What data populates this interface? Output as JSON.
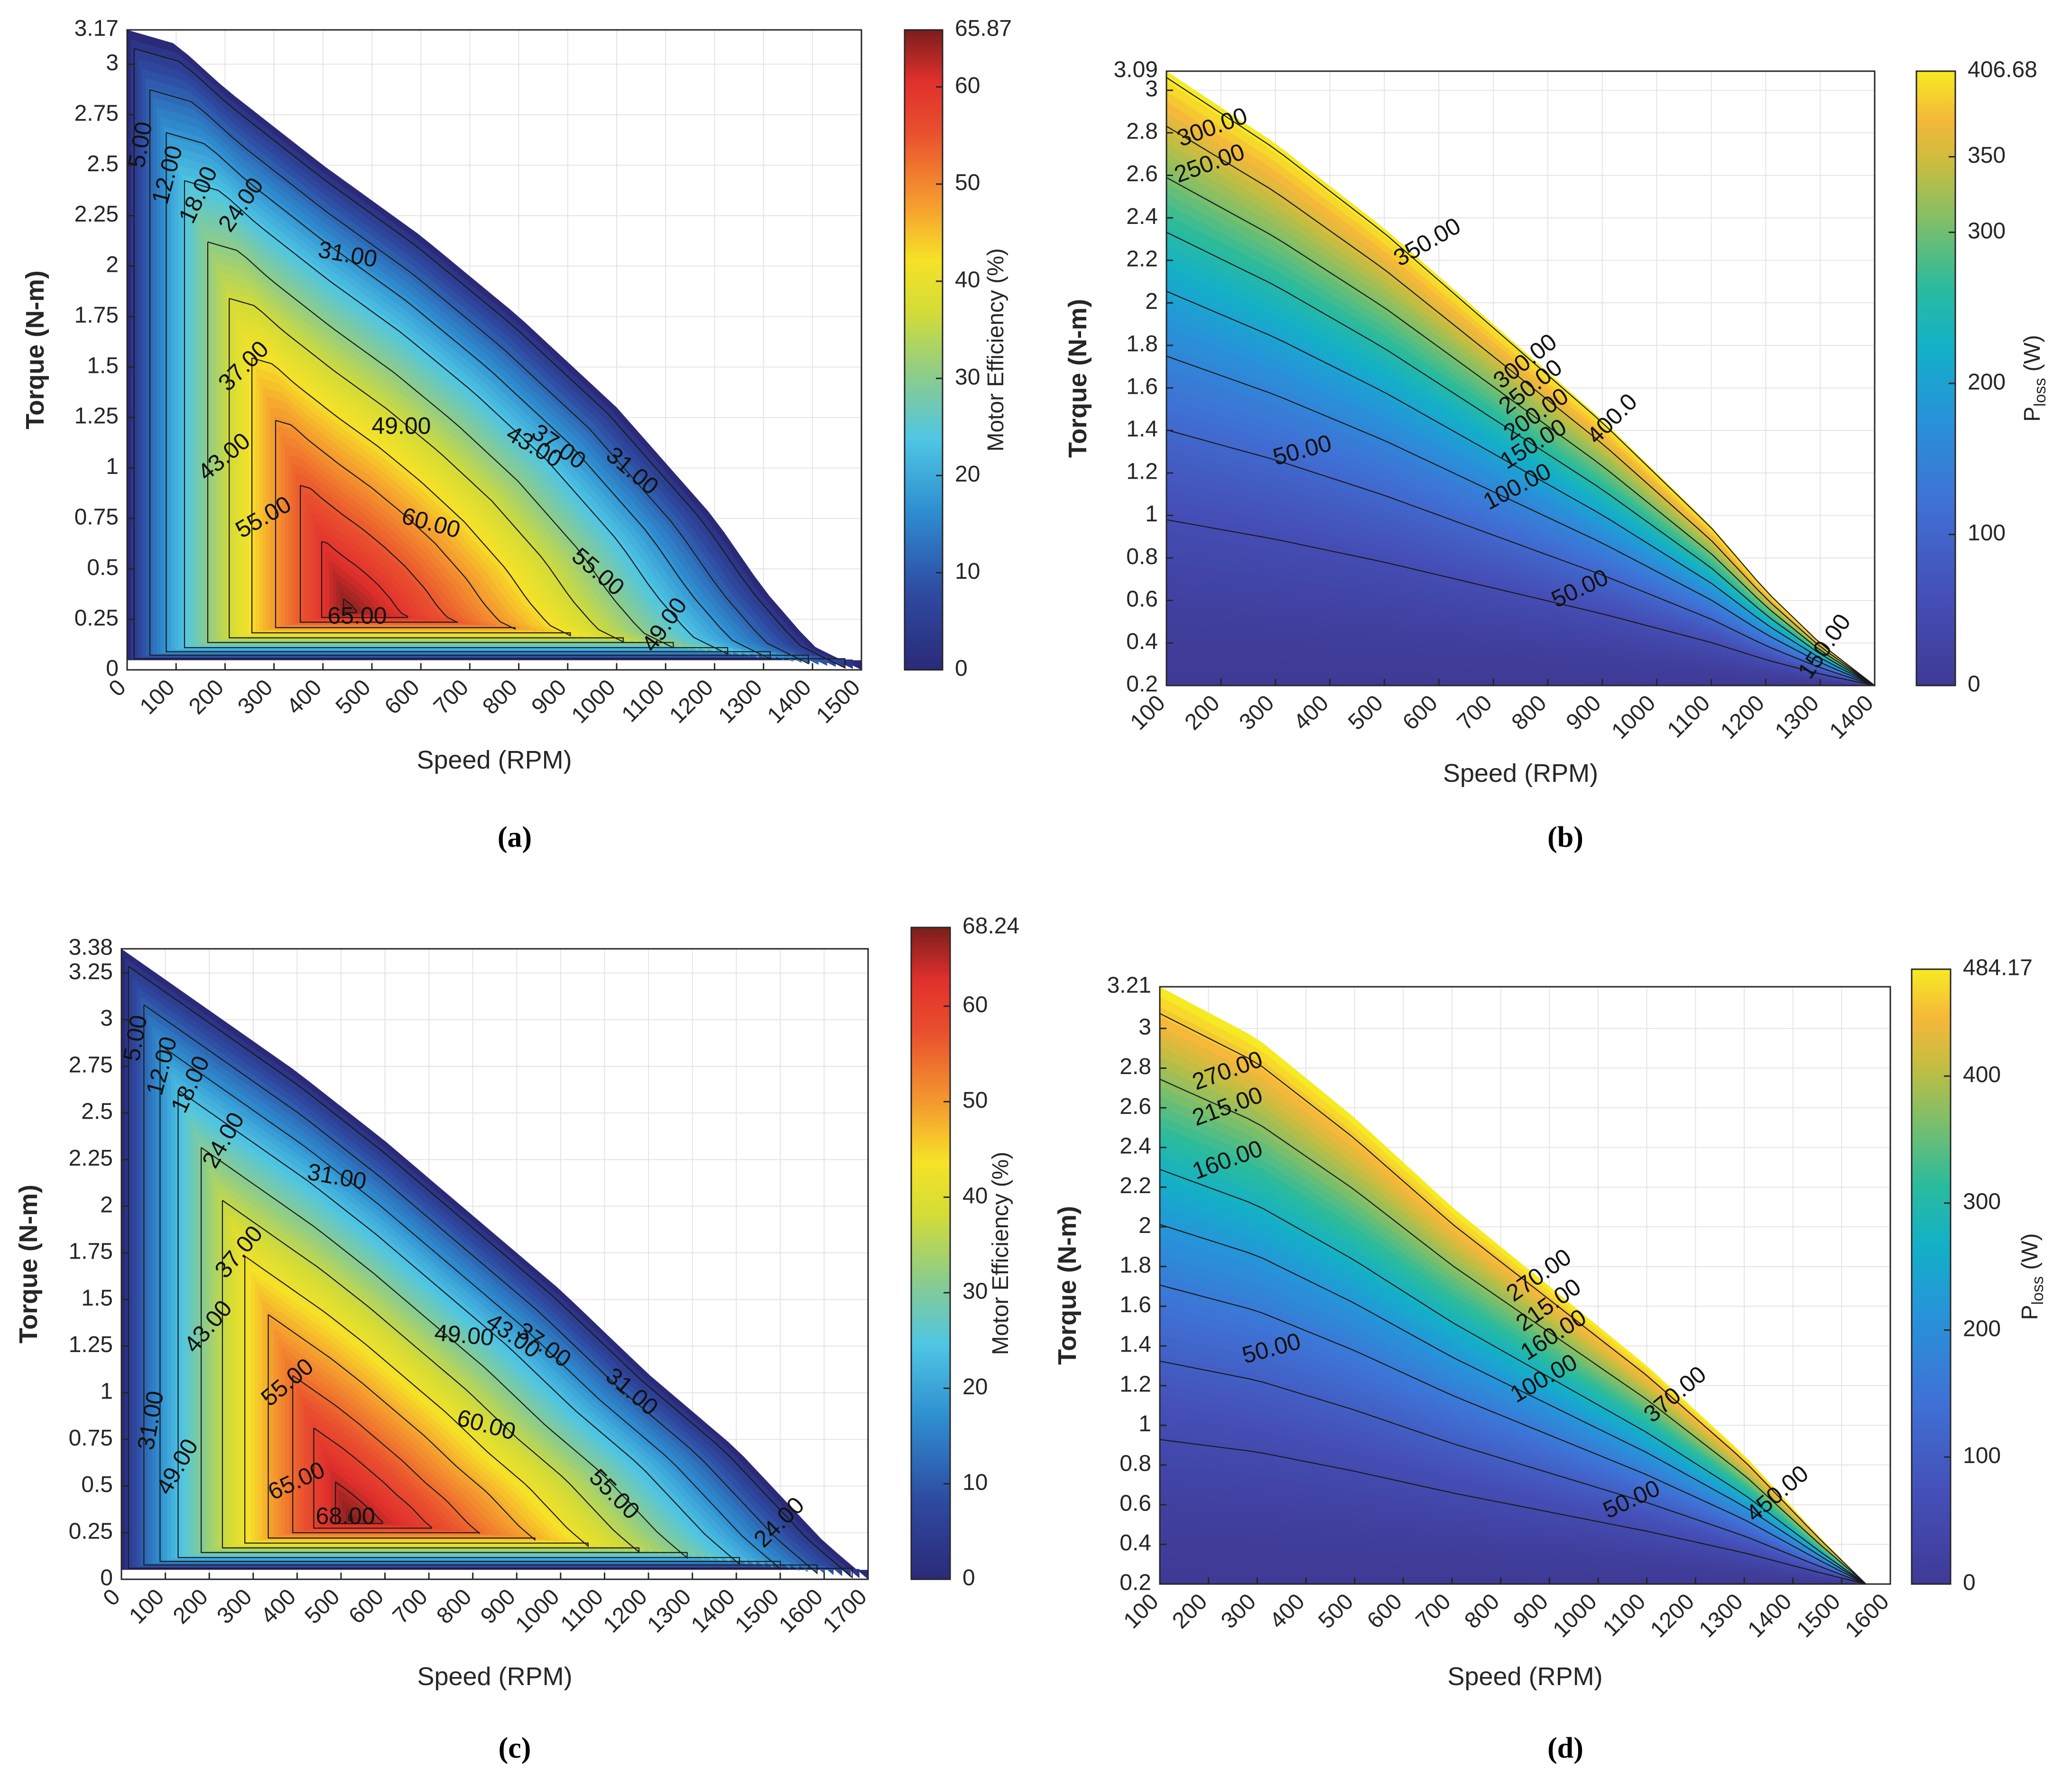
{
  "figure": {
    "panels": [
      {
        "id": "a",
        "caption": "(a)"
      },
      {
        "id": "b",
        "caption": "(b)"
      },
      {
        "id": "c",
        "caption": "(c)"
      },
      {
        "id": "d",
        "caption": "(d)"
      }
    ]
  },
  "chart_data": [
    {
      "panel": "a",
      "type": "contour",
      "title": "",
      "xlabel": "Speed (RPM)",
      "ylabel": "Torque (N-m)",
      "colorbar_label": "Motor Efficiency (%)",
      "xlim": [
        0,
        1500
      ],
      "ylim": [
        0,
        3.17
      ],
      "x_ticks": [
        "0",
        "100",
        "200",
        "300",
        "400",
        "500",
        "600",
        "700",
        "800",
        "900",
        "1000",
        "1100",
        "1200",
        "1300",
        "1400",
        "1500"
      ],
      "y_ticks": [
        "0",
        "0.25",
        "0.5",
        "0.75",
        "1",
        "1.25",
        "1.5",
        "1.75",
        "2",
        "2.25",
        "2.5",
        "2.75",
        "3",
        "3.17"
      ],
      "colorbar_range": [
        0,
        65.87
      ],
      "colorbar_ticks": [
        "0",
        "10",
        "20",
        "30",
        "40",
        "50",
        "60",
        "65.87"
      ],
      "colormap": "jet",
      "contour_levels": [
        5,
        12,
        18,
        24,
        31,
        37,
        43,
        49,
        55,
        60,
        65
      ],
      "boundary": [
        [
          0,
          3.17
        ],
        [
          100,
          3.1
        ],
        [
          200,
          2.88
        ],
        [
          400,
          2.5
        ],
        [
          600,
          2.15
        ],
        [
          800,
          1.75
        ],
        [
          1000,
          1.3
        ],
        [
          1200,
          0.75
        ],
        [
          1300,
          0.4
        ],
        [
          1400,
          0.12
        ],
        [
          1500,
          0
        ]
      ],
      "peak": {
        "x": 450,
        "y": 0.3,
        "value": 65.87
      },
      "contour_labels": [
        {
          "text": "5.00",
          "x": 30,
          "y": 2.6,
          "rot": -80
        },
        {
          "text": "12.00",
          "x": 85,
          "y": 2.45,
          "rot": -75
        },
        {
          "text": "18.00",
          "x": 148,
          "y": 2.35,
          "rot": -65
        },
        {
          "text": "24.00",
          "x": 235,
          "y": 2.3,
          "rot": -55
        },
        {
          "text": "31.00",
          "x": 450,
          "y": 2.05,
          "rot": 10
        },
        {
          "text": "37.00",
          "x": 240,
          "y": 1.5,
          "rot": -45
        },
        {
          "text": "43.00",
          "x": 200,
          "y": 1.05,
          "rot": -40
        },
        {
          "text": "49.00",
          "x": 560,
          "y": 1.2,
          "rot": 0
        },
        {
          "text": "55.00",
          "x": 280,
          "y": 0.75,
          "rot": -30
        },
        {
          "text": "60.00",
          "x": 620,
          "y": 0.72,
          "rot": 15
        },
        {
          "text": "65.00",
          "x": 470,
          "y": 0.26,
          "rot": 0
        },
        {
          "text": "43.00",
          "x": 830,
          "y": 1.1,
          "rot": 30
        },
        {
          "text": "37.00",
          "x": 880,
          "y": 1.1,
          "rot": 35
        },
        {
          "text": "31.00",
          "x": 1030,
          "y": 0.98,
          "rot": 40
        },
        {
          "text": "55.00",
          "x": 960,
          "y": 0.48,
          "rot": 40
        },
        {
          "text": "49.00",
          "x": 1100,
          "y": 0.22,
          "rot": -55
        }
      ]
    },
    {
      "panel": "b",
      "type": "contour",
      "title": "",
      "xlabel": "Speed (RPM)",
      "ylabel": "Torque (N-m)",
      "colorbar_label": "P_loss (W)",
      "colorbar_label_main": "P",
      "colorbar_label_sub": "loss",
      "colorbar_label_unit": "(W)",
      "xlim": [
        100,
        1400
      ],
      "ylim": [
        0.2,
        3.09
      ],
      "x_ticks": [
        "100",
        "200",
        "300",
        "400",
        "500",
        "600",
        "700",
        "800",
        "900",
        "1000",
        "1100",
        "1200",
        "1300",
        "1400"
      ],
      "y_ticks": [
        "0.2",
        "0.4",
        "0.6",
        "0.8",
        "1",
        "1.2",
        "1.4",
        "1.6",
        "1.8",
        "2",
        "2.2",
        "2.4",
        "2.6",
        "2.8",
        "3",
        "3.09"
      ],
      "colorbar_range": [
        0,
        406.68
      ],
      "colorbar_ticks": [
        "0",
        "100",
        "200",
        "300",
        "350",
        "406.68"
      ],
      "colormap": "parula",
      "contour_levels": [
        50,
        100,
        150,
        200,
        250,
        300,
        350,
        400
      ],
      "boundary": [
        [
          100,
          3.09
        ],
        [
          300,
          2.75
        ],
        [
          500,
          2.35
        ],
        [
          700,
          1.9
        ],
        [
          900,
          1.45
        ],
        [
          1100,
          0.95
        ],
        [
          1200,
          0.65
        ],
        [
          1300,
          0.4
        ],
        [
          1400,
          0.2
        ]
      ],
      "contour_labels": [
        {
          "text": "300.00",
          "x": 185,
          "y": 2.82,
          "rot": -20
        },
        {
          "text": "250.00",
          "x": 180,
          "y": 2.65,
          "rot": -20
        },
        {
          "text": "350.00",
          "x": 580,
          "y": 2.28,
          "rot": -30
        },
        {
          "text": "300.00",
          "x": 760,
          "y": 1.72,
          "rot": -38
        },
        {
          "text": "250.00",
          "x": 770,
          "y": 1.6,
          "rot": -38
        },
        {
          "text": "200.00",
          "x": 780,
          "y": 1.47,
          "rot": -35
        },
        {
          "text": "150.00",
          "x": 775,
          "y": 1.33,
          "rot": -32
        },
        {
          "text": "100.00",
          "x": 745,
          "y": 1.13,
          "rot": -28
        },
        {
          "text": "400.0",
          "x": 920,
          "y": 1.45,
          "rot": -45
        },
        {
          "text": "50.00",
          "x": 350,
          "y": 1.3,
          "rot": -15
        },
        {
          "text": "50.00",
          "x": 860,
          "y": 0.65,
          "rot": -25
        },
        {
          "text": "150.00",
          "x": 1310,
          "y": 0.38,
          "rot": -55
        }
      ]
    },
    {
      "panel": "c",
      "type": "contour",
      "title": "",
      "xlabel": "Speed (RPM)",
      "ylabel": "Torque (N-m)",
      "colorbar_label": "Motor Efficiency (%)",
      "xlim": [
        0,
        1700
      ],
      "ylim": [
        0,
        3.38
      ],
      "x_ticks": [
        "0",
        "100",
        "200",
        "300",
        "400",
        "500",
        "600",
        "700",
        "800",
        "900",
        "1000",
        "1100",
        "1200",
        "1300",
        "1400",
        "1500",
        "1600",
        "1700"
      ],
      "y_ticks": [
        "0",
        "0.25",
        "0.5",
        "0.75",
        "1",
        "1.25",
        "1.5",
        "1.75",
        "2",
        "2.25",
        "2.5",
        "2.75",
        "3",
        "3.25",
        "3.38"
      ],
      "colorbar_range": [
        0,
        68.24
      ],
      "colorbar_ticks": [
        "0",
        "10",
        "20",
        "30",
        "40",
        "50",
        "60",
        "68.24"
      ],
      "colormap": "jet",
      "contour_levels": [
        5,
        12,
        18,
        24,
        31,
        37,
        43,
        49,
        55,
        60,
        65,
        68
      ],
      "boundary": [
        [
          0,
          3.38
        ],
        [
          200,
          3.05
        ],
        [
          400,
          2.72
        ],
        [
          600,
          2.35
        ],
        [
          800,
          1.95
        ],
        [
          1000,
          1.55
        ],
        [
          1200,
          1.1
        ],
        [
          1400,
          0.7
        ],
        [
          1600,
          0.2
        ],
        [
          1700,
          0
        ]
      ],
      "peak": {
        "x": 520,
        "y": 0.33,
        "value": 68.24
      },
      "contour_labels": [
        {
          "text": "5.00",
          "x": 35,
          "y": 2.9,
          "rot": -80
        },
        {
          "text": "12.00",
          "x": 95,
          "y": 2.75,
          "rot": -75
        },
        {
          "text": "18.00",
          "x": 160,
          "y": 2.65,
          "rot": -65
        },
        {
          "text": "24.00",
          "x": 235,
          "y": 2.35,
          "rot": -60
        },
        {
          "text": "31.00",
          "x": 490,
          "y": 2.15,
          "rot": 10
        },
        {
          "text": "37.00",
          "x": 270,
          "y": 1.75,
          "rot": -50
        },
        {
          "text": "43.00",
          "x": 200,
          "y": 1.35,
          "rot": -50
        },
        {
          "text": "55.00",
          "x": 380,
          "y": 1.05,
          "rot": -40
        },
        {
          "text": "49.00",
          "x": 780,
          "y": 1.3,
          "rot": 5
        },
        {
          "text": "43.00",
          "x": 890,
          "y": 1.3,
          "rot": 35
        },
        {
          "text": "37.00",
          "x": 960,
          "y": 1.25,
          "rot": 35
        },
        {
          "text": "31.00",
          "x": 1160,
          "y": 1.0,
          "rot": 40
        },
        {
          "text": "31.00",
          "x": 70,
          "y": 0.85,
          "rot": -80
        },
        {
          "text": "49.00",
          "x": 130,
          "y": 0.6,
          "rot": -60
        },
        {
          "text": "60.00",
          "x": 830,
          "y": 0.82,
          "rot": 15
        },
        {
          "text": "65.00",
          "x": 400,
          "y": 0.52,
          "rot": -25
        },
        {
          "text": "68.00",
          "x": 510,
          "y": 0.33,
          "rot": 0
        },
        {
          "text": "55.00",
          "x": 1120,
          "y": 0.45,
          "rot": 45
        },
        {
          "text": "24.00",
          "x": 1500,
          "y": 0.3,
          "rot": -45
        }
      ]
    },
    {
      "panel": "d",
      "type": "contour",
      "title": "",
      "xlabel": "Speed (RPM)",
      "ylabel": "Torque (N-m)",
      "colorbar_label": "P_loss (W)",
      "colorbar_label_main": "P",
      "colorbar_label_sub": "loss",
      "colorbar_label_unit": "(W)",
      "xlim": [
        100,
        1600
      ],
      "ylim": [
        0.2,
        3.21
      ],
      "x_ticks": [
        "100",
        "200",
        "300",
        "400",
        "500",
        "600",
        "700",
        "800",
        "900",
        "1000",
        "1100",
        "1200",
        "1300",
        "1400",
        "1500",
        "1600"
      ],
      "y_ticks": [
        "0.2",
        "0.4",
        "0.6",
        "0.8",
        "1",
        "1.2",
        "1.4",
        "1.6",
        "1.8",
        "2",
        "2.2",
        "2.4",
        "2.6",
        "2.8",
        "3",
        "3.21"
      ],
      "colorbar_range": [
        0,
        484.17
      ],
      "colorbar_ticks": [
        "0",
        "100",
        "200",
        "300",
        "400",
        "484.17"
      ],
      "colormap": "parula",
      "contour_levels": [
        50,
        100,
        160,
        215,
        270,
        370,
        450
      ],
      "boundary": [
        [
          100,
          3.21
        ],
        [
          300,
          2.95
        ],
        [
          500,
          2.55
        ],
        [
          700,
          2.1
        ],
        [
          900,
          1.7
        ],
        [
          1100,
          1.3
        ],
        [
          1300,
          0.85
        ],
        [
          1450,
          0.45
        ],
        [
          1550,
          0.2
        ]
      ],
      "contour_labels": [
        {
          "text": "270.00",
          "x": 240,
          "y": 2.78,
          "rot": -20
        },
        {
          "text": "215.00",
          "x": 240,
          "y": 2.6,
          "rot": -20
        },
        {
          "text": "160.00",
          "x": 240,
          "y": 2.33,
          "rot": -20
        },
        {
          "text": "50.00",
          "x": 330,
          "y": 1.38,
          "rot": -15
        },
        {
          "text": "270.00",
          "x": 880,
          "y": 1.75,
          "rot": -35
        },
        {
          "text": "215.00",
          "x": 900,
          "y": 1.6,
          "rot": -35
        },
        {
          "text": "160.00",
          "x": 910,
          "y": 1.45,
          "rot": -33
        },
        {
          "text": "100.00",
          "x": 890,
          "y": 1.23,
          "rot": -30
        },
        {
          "text": "370.00",
          "x": 1160,
          "y": 1.15,
          "rot": -40
        },
        {
          "text": "50.00",
          "x": 1070,
          "y": 0.62,
          "rot": -25
        },
        {
          "text": "450.00",
          "x": 1370,
          "y": 0.65,
          "rot": -40
        }
      ]
    }
  ]
}
